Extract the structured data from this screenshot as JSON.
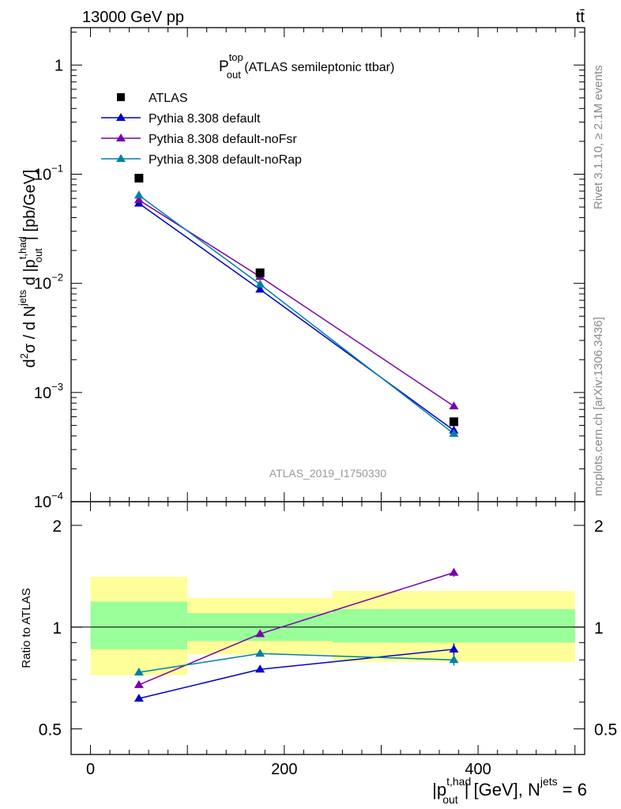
{
  "header": {
    "left": "13000 GeV pp",
    "right": "tt̄"
  },
  "side_labels": {
    "rivet": "Rivet 3.1.10, ≥ 2.1M events",
    "mcplots": "mcplots.cern.ch [arXiv:1306.3436]"
  },
  "watermark": "ATLAS_2019_I1750330",
  "title": {
    "main": "P",
    "sup": "top",
    "sub": "out",
    "rest": " (ATLAS semileptonic ttbar)"
  },
  "ylabel_main": {
    "d2": "d",
    "d2_sup": "2",
    "sigma_part": "σ / d N",
    "jets_sup": "jets",
    "d_part": " d |p",
    "thad_sup": "t,had",
    "out_sub": "out",
    "unit": "| [pb/GeV]"
  },
  "ylabel_ratio": "Ratio to ATLAS",
  "xlabel": {
    "p": "|p",
    "thad_sup": "t,had",
    "out_sub": "out",
    "unit": "| [GeV], N",
    "jets_sup": "jets",
    "eq": " = 6"
  },
  "colors": {
    "atlas": "#000000",
    "default": "#0000cc",
    "noFsr": "#7a00a8",
    "noRap": "#0080a8",
    "band_outer": "#ffff99",
    "band_inner": "#99ff99"
  },
  "chart_data": {
    "type": "line",
    "xlim": [
      -20,
      510
    ],
    "main": {
      "scale": "log",
      "ylim": [
        0.0001,
        2.2
      ],
      "yticks": [
        {
          "value": 1,
          "base": "1",
          "exp": ""
        },
        {
          "value": 0.1,
          "base": "10",
          "exp": "−1"
        },
        {
          "value": 0.01,
          "base": "10",
          "exp": "−2"
        },
        {
          "value": 0.001,
          "base": "10",
          "exp": "−3"
        },
        {
          "value": 0.0001,
          "base": "10",
          "exp": "−4"
        }
      ]
    },
    "ratio": {
      "scale": "log",
      "ylim": [
        0.42,
        2.35
      ],
      "yticks": [
        {
          "value": 0.5,
          "label": "0.5"
        },
        {
          "value": 1,
          "label": "1"
        },
        {
          "value": 2,
          "label": "2"
        }
      ]
    },
    "xticks": [
      {
        "value": 0,
        "label": "0"
      },
      {
        "value": 200,
        "label": "200"
      },
      {
        "value": 400,
        "label": "400"
      }
    ],
    "bins": [
      [
        0,
        100
      ],
      [
        100,
        250
      ],
      [
        250,
        500
      ]
    ],
    "x": [
      50,
      175,
      375
    ],
    "atlas": {
      "name": "ATLAS",
      "values": [
        0.092,
        0.0125,
        0.00054
      ]
    },
    "bands": {
      "outer": [
        [
          0.72,
          1.41
        ],
        [
          0.83,
          1.22
        ],
        [
          0.79,
          1.28
        ]
      ],
      "inner": [
        [
          0.86,
          1.19
        ],
        [
          0.91,
          1.1
        ],
        [
          0.9,
          1.13
        ]
      ]
    },
    "series": [
      {
        "key": "default",
        "name": "Pythia 8.308 default",
        "values": [
          0.054,
          0.0088,
          0.00045
        ],
        "ratio": [
          0.615,
          0.75,
          0.86
        ],
        "ratio_err": [
          0.008,
          0.008,
          0.035
        ]
      },
      {
        "key": "noFsr",
        "name": "Pythia 8.308 default-noFsr",
        "values": [
          0.058,
          0.0115,
          0.00075
        ],
        "ratio": [
          0.675,
          0.955,
          1.45
        ],
        "ratio_err": [
          0.008,
          0.008,
          0.04
        ]
      },
      {
        "key": "noRap",
        "name": "Pythia 8.308 default-noRap",
        "values": [
          0.064,
          0.0098,
          0.00042
        ],
        "ratio": [
          0.735,
          0.835,
          0.8
        ],
        "ratio_err": [
          0.008,
          0.008,
          0.03
        ]
      }
    ]
  }
}
